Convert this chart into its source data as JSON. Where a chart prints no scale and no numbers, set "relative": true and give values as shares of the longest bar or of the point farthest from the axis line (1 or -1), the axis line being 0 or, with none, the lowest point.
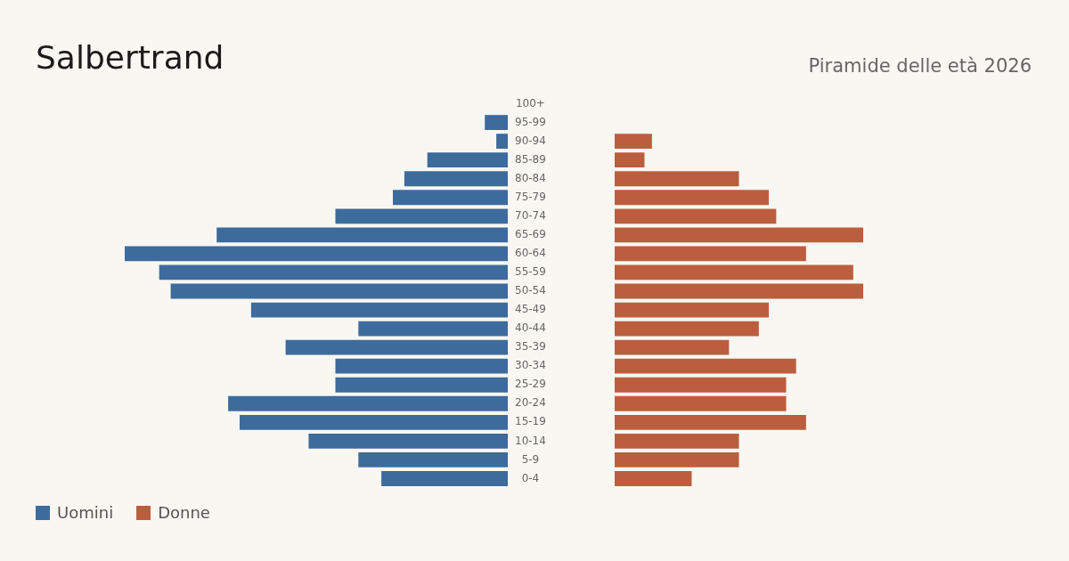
{
  "chart_data": [
    {
      "type": "bar",
      "title": "Salbertrand",
      "orientation": "horizontal",
      "relative": true,
      "legend": "bottom left",
      "tick_labels": "y",
      "categories": [
        "100+",
        "95-99",
        "90-94",
        "85-89",
        "80-84",
        "75-79",
        "70-74",
        "65-69",
        "60-64",
        "55-59",
        "50-54",
        "45-49",
        "40-44",
        "35-39",
        "30-34",
        "25-29",
        "20-24",
        "15-19",
        "10-14",
        "5-9",
        "0-4"
      ],
      "series": [
        {
          "name": "Uomini",
          "color": "#3d6b9c",
          "values": [
            0,
            -0.06,
            -0.03,
            -0.21,
            -0.27,
            -0.3,
            -0.45,
            -0.76,
            -1,
            -0.91,
            -0.88,
            -0.67,
            -0.39,
            -0.58,
            -0.45,
            -0.45,
            -0.73,
            -0.7,
            -0.52,
            -0.39,
            -0.33
          ]
        }
      ]
    },
    {
      "type": "bar",
      "subtitle": "Piramide delle età 2026",
      "orientation": "horizontal",
      "relative": true,
      "legend": "bottom left",
      "tick_labels": false,
      "categories": [
        null,
        null,
        null,
        null,
        null,
        null,
        null,
        null,
        null,
        null,
        null,
        null,
        null,
        null,
        null,
        null,
        null,
        null,
        null,
        null,
        null
      ],
      "series": [
        {
          "name": "Donne",
          "color": "#bb5e3e",
          "values": [
            0,
            0,
            0.15,
            0.12,
            0.5,
            0.62,
            0.65,
            1,
            0.77,
            0.96,
            1,
            0.62,
            0.58,
            0.46,
            0.73,
            0.69,
            0.69,
            0.77,
            0.5,
            0.5,
            0.31
          ]
        }
      ]
    }
  ]
}
